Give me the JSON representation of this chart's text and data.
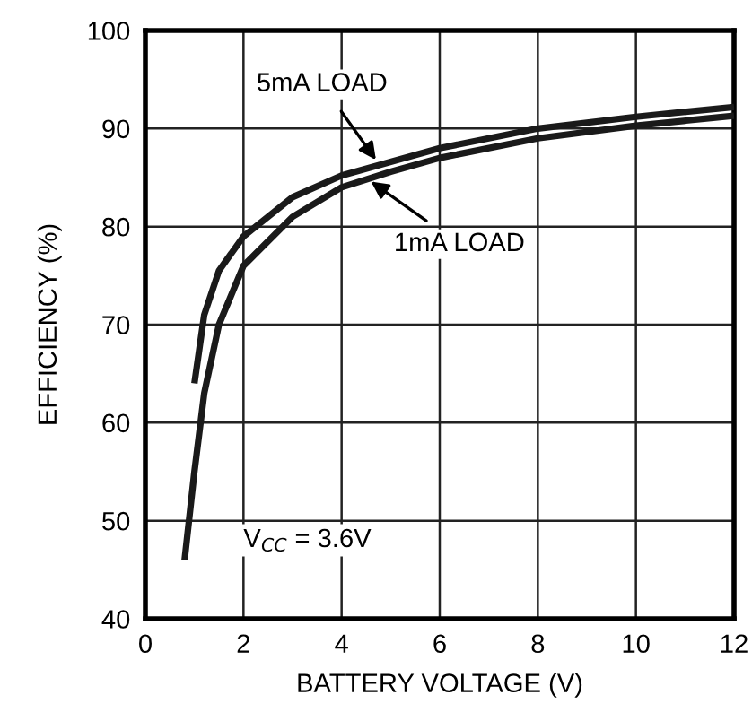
{
  "chart_data": {
    "type": "line",
    "xlabel": "BATTERY VOLTAGE (V)",
    "ylabel": "EFFICIENCY (%)",
    "series": [
      {
        "color": "#1a1a1a",
        "x": [
          1.0,
          1.2,
          1.5,
          2,
          3,
          4,
          5,
          6,
          8,
          10,
          12
        ],
        "values": [
          64,
          71,
          75.5,
          79,
          83,
          85.2,
          86.6,
          88,
          90,
          91.2,
          92.2
        ]
      },
      {
        "color": "#1a1a1a",
        "x": [
          0.8,
          1.0,
          1.2,
          1.5,
          2,
          3,
          4,
          5,
          6,
          8,
          10,
          12
        ],
        "values": [
          46,
          55,
          63,
          70,
          76,
          81,
          84,
          85.6,
          87,
          89,
          90.3,
          91.3
        ]
      }
    ],
    "annotations": [
      {
        "text": "5mA LOAD",
        "x": 4.7,
        "y": 86.8
      },
      {
        "text": "1mA LOAD",
        "x": 4.6,
        "y": 84.6
      },
      "V$_{CC}$ = 3.6V"
    ],
    "xlim": [
      0,
      12
    ],
    "xticks": [
      0,
      2,
      4,
      6,
      8,
      10,
      12
    ],
    "ylim": [
      40,
      100
    ],
    "yticks": [
      40,
      50,
      60,
      70,
      80,
      90,
      100
    ],
    "grid": true,
    "marker": "none",
    "line_style": "solid"
  }
}
